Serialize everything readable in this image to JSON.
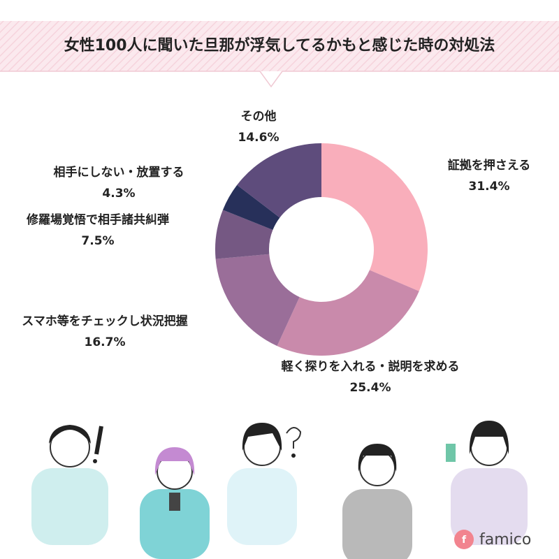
{
  "chart_data": {
    "type": "pie",
    "title": "女性100人に聞いた旦那が浮気してるかもと感じた時の対処法",
    "categories": [
      "証拠を押さえる",
      "軽く探りを入れる・説明を求める",
      "スマホ等をチェックし状況把握",
      "修羅場覚悟で相手諸共糾弾",
      "相手にしない・放置する",
      "その他"
    ],
    "values": [
      31.4,
      25.4,
      16.7,
      7.5,
      4.3,
      14.6
    ],
    "value_labels": [
      "31.4%",
      "25.4%",
      "16.7%",
      "7.5%",
      "4.3%",
      "14.6%"
    ],
    "colors": [
      "#f9aebb",
      "#c98aab",
      "#9a6e99",
      "#755883",
      "#27305a",
      "#5e4c7c"
    ],
    "donut": true
  },
  "brand": "famico"
}
